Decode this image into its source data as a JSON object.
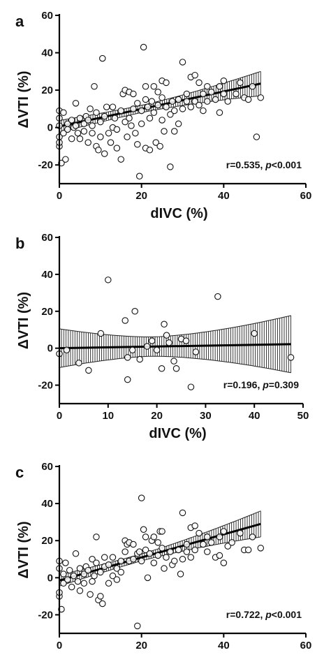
{
  "figure": {
    "panels": [
      {
        "letter": "a",
        "annotation_prefix": "r=0.535, ",
        "annotation_p": "p",
        "annotation_suffix": "<0.001"
      },
      {
        "letter": "b",
        "annotation_prefix": "r=0.196, ",
        "annotation_p": "p",
        "annotation_suffix": "=0.309"
      },
      {
        "letter": "c",
        "annotation_prefix": "r=0.722, ",
        "annotation_p": "p",
        "annotation_suffix": "<0.001"
      }
    ]
  },
  "chart_data": [
    {
      "type": "scatter",
      "panel": "a",
      "title": "",
      "xlabel": "dIVC (%)",
      "ylabel": "ΔVTI (%)",
      "xlim": [
        0,
        60
      ],
      "ylim": [
        -30,
        60
      ],
      "xticks": [
        0,
        20,
        40,
        60
      ],
      "yticks": [
        -20,
        0,
        20,
        40,
        60
      ],
      "annotation": "r=0.535, p<0.001",
      "regression": {
        "x": [
          0,
          49
        ],
        "y": [
          0.6,
          23.5
        ],
        "band_halfwidth": [
          3.2,
          6.5
        ]
      },
      "points": [
        [
          0,
          -10
        ],
        [
          0,
          -8
        ],
        [
          0,
          5
        ],
        [
          0,
          9
        ],
        [
          0,
          1
        ],
        [
          0,
          -5
        ],
        [
          0.5,
          -19
        ],
        [
          1,
          8
        ],
        [
          1,
          -3
        ],
        [
          1.5,
          -17
        ],
        [
          2,
          2
        ],
        [
          2,
          -1
        ],
        [
          3,
          4
        ],
        [
          3,
          -6
        ],
        [
          3.5,
          0
        ],
        [
          4,
          13
        ],
        [
          4,
          1
        ],
        [
          4.5,
          -3
        ],
        [
          5,
          5
        ],
        [
          5,
          -6
        ],
        [
          6,
          2
        ],
        [
          6,
          -2
        ],
        [
          6.5,
          6
        ],
        [
          7,
          4
        ],
        [
          7,
          -8
        ],
        [
          7.5,
          10
        ],
        [
          8,
          -3
        ],
        [
          8,
          1
        ],
        [
          8.5,
          22
        ],
        [
          9,
          8
        ],
        [
          9,
          -10
        ],
        [
          9.5,
          -12
        ],
        [
          10,
          3
        ],
        [
          10,
          -5
        ],
        [
          10.5,
          37
        ],
        [
          11,
          6
        ],
        [
          11,
          -14
        ],
        [
          11.5,
          11
        ],
        [
          12,
          -3
        ],
        [
          12.5,
          -8
        ],
        [
          13,
          11
        ],
        [
          13,
          0
        ],
        [
          13.5,
          5
        ],
        [
          14,
          -1
        ],
        [
          14,
          -11
        ],
        [
          15,
          9
        ],
        [
          15,
          -17
        ],
        [
          15.5,
          18
        ],
        [
          16,
          20
        ],
        [
          16,
          3
        ],
        [
          16.5,
          -5
        ],
        [
          17,
          19
        ],
        [
          17,
          5
        ],
        [
          17.5,
          1
        ],
        [
          18,
          18
        ],
        [
          18,
          10
        ],
        [
          18.5,
          -3
        ],
        [
          19,
          13
        ],
        [
          19,
          -9
        ],
        [
          19.5,
          -26
        ],
        [
          20,
          9
        ],
        [
          20,
          2
        ],
        [
          20.5,
          43
        ],
        [
          21,
          22
        ],
        [
          21,
          15
        ],
        [
          21,
          -11
        ],
        [
          21.5,
          11
        ],
        [
          22,
          5
        ],
        [
          22,
          -12
        ],
        [
          22.5,
          14
        ],
        [
          23,
          22
        ],
        [
          23,
          8
        ],
        [
          23.5,
          -8
        ],
        [
          24,
          19
        ],
        [
          24,
          12
        ],
        [
          24.5,
          -10
        ],
        [
          25,
          25
        ],
        [
          25,
          16
        ],
        [
          25,
          4
        ],
        [
          25.5,
          -2
        ],
        [
          26,
          24
        ],
        [
          26,
          11
        ],
        [
          27,
          7
        ],
        [
          27,
          -21
        ],
        [
          27.5,
          14
        ],
        [
          28,
          9
        ],
        [
          28,
          -2
        ],
        [
          29,
          15
        ],
        [
          29,
          2
        ],
        [
          30,
          35
        ],
        [
          30,
          10
        ],
        [
          31,
          18
        ],
        [
          31,
          14
        ],
        [
          32,
          27
        ],
        [
          32,
          11
        ],
        [
          33,
          28
        ],
        [
          33,
          14
        ],
        [
          34,
          24
        ],
        [
          34,
          12
        ],
        [
          35,
          18
        ],
        [
          35,
          9
        ],
        [
          36,
          22
        ],
        [
          36,
          14
        ],
        [
          37,
          19
        ],
        [
          38,
          15
        ],
        [
          39,
          22
        ],
        [
          39,
          8
        ],
        [
          40,
          25
        ],
        [
          40,
          18
        ],
        [
          41,
          14
        ],
        [
          43,
          18
        ],
        [
          44,
          24
        ],
        [
          45,
          16
        ],
        [
          46,
          15
        ],
        [
          47,
          22
        ],
        [
          48,
          -5
        ],
        [
          49,
          16
        ]
      ]
    },
    {
      "type": "scatter",
      "panel": "b",
      "title": "",
      "xlabel": "dIVC (%)",
      "ylabel": "ΔVTI (%)",
      "xlim": [
        0,
        50
      ],
      "ylim": [
        -30,
        60
      ],
      "xticks": [
        0,
        10,
        20,
        30,
        40,
        50
      ],
      "yticks": [
        -20,
        0,
        20,
        40,
        60
      ],
      "annotation": "r=0.196, p=0.309",
      "regression": {
        "x": [
          0,
          47.5
        ],
        "y": [
          0.0,
          2.2
        ],
        "band_halfwidth": [
          10.5,
          15.5
        ]
      },
      "points": [
        [
          0,
          -3
        ],
        [
          1.5,
          -1
        ],
        [
          4,
          -8
        ],
        [
          6,
          -12
        ],
        [
          8.5,
          8
        ],
        [
          10,
          37
        ],
        [
          13.5,
          15
        ],
        [
          14,
          -17
        ],
        [
          14,
          -5
        ],
        [
          15,
          -1
        ],
        [
          15.5,
          20
        ],
        [
          16.5,
          -6
        ],
        [
          18,
          1
        ],
        [
          19,
          4
        ],
        [
          20,
          -1
        ],
        [
          21,
          -11
        ],
        [
          21.5,
          13
        ],
        [
          22,
          7
        ],
        [
          22.5,
          3
        ],
        [
          23.5,
          -7
        ],
        [
          24,
          -11
        ],
        [
          25,
          5
        ],
        [
          26,
          4
        ],
        [
          27,
          -21
        ],
        [
          28,
          -2
        ],
        [
          32.5,
          28
        ],
        [
          40,
          8
        ],
        [
          47.5,
          -5
        ]
      ]
    },
    {
      "type": "scatter",
      "panel": "c",
      "title": "",
      "xlabel": "",
      "ylabel": "ΔVTI (%)",
      "xlim": [
        0,
        60
      ],
      "ylim": [
        -30,
        60
      ],
      "xticks": [
        0,
        20,
        40,
        60
      ],
      "yticks": [
        -20,
        0,
        20,
        40,
        60
      ],
      "annotation": "r=0.722, p<0.001",
      "regression": {
        "x": [
          0,
          49
        ],
        "y": [
          -1.5,
          29
        ],
        "band_halfwidth": [
          3.0,
          7.0
        ]
      },
      "points": [
        [
          0,
          -10
        ],
        [
          0,
          -8
        ],
        [
          0,
          5
        ],
        [
          0,
          9
        ],
        [
          0.5,
          -17
        ],
        [
          1,
          2
        ],
        [
          1,
          -3
        ],
        [
          1.5,
          8
        ],
        [
          2,
          -1
        ],
        [
          2.5,
          4
        ],
        [
          3,
          -5
        ],
        [
          3.5,
          1
        ],
        [
          4,
          13
        ],
        [
          4.5,
          -2
        ],
        [
          5,
          5
        ],
        [
          5,
          -7
        ],
        [
          6,
          2
        ],
        [
          6,
          -3
        ],
        [
          6.5,
          6
        ],
        [
          7,
          4
        ],
        [
          7.5,
          -9
        ],
        [
          8,
          10
        ],
        [
          8,
          -2
        ],
        [
          8.5,
          1
        ],
        [
          9,
          22
        ],
        [
          9,
          8
        ],
        [
          9.5,
          -12
        ],
        [
          10,
          -10
        ],
        [
          10,
          3
        ],
        [
          10.5,
          -14
        ],
        [
          11,
          6
        ],
        [
          11,
          11
        ],
        [
          12,
          -3
        ],
        [
          12,
          7
        ],
        [
          13,
          11
        ],
        [
          13,
          1
        ],
        [
          14,
          5
        ],
        [
          14,
          -1
        ],
        [
          15,
          9
        ],
        [
          15,
          3
        ],
        [
          16,
          20
        ],
        [
          16,
          14
        ],
        [
          16.5,
          18
        ],
        [
          17,
          19
        ],
        [
          17,
          9
        ],
        [
          18,
          18
        ],
        [
          18,
          10
        ],
        [
          19,
          13
        ],
        [
          19,
          -26
        ],
        [
          19.5,
          14
        ],
        [
          20,
          9
        ],
        [
          20,
          43
        ],
        [
          20.5,
          26
        ],
        [
          21,
          22
        ],
        [
          21,
          15
        ],
        [
          21.5,
          0
        ],
        [
          22,
          13
        ],
        [
          22.5,
          20
        ],
        [
          23,
          22
        ],
        [
          23,
          8
        ],
        [
          24,
          19
        ],
        [
          24,
          12
        ],
        [
          24.5,
          25
        ],
        [
          25,
          25
        ],
        [
          25,
          16
        ],
        [
          25.5,
          5
        ],
        [
          26,
          11
        ],
        [
          27,
          14
        ],
        [
          27.5,
          7
        ],
        [
          28,
          9
        ],
        [
          29,
          15
        ],
        [
          29.5,
          2
        ],
        [
          30,
          35
        ],
        [
          30,
          10
        ],
        [
          31,
          18
        ],
        [
          31,
          14
        ],
        [
          32,
          27
        ],
        [
          32,
          11
        ],
        [
          33,
          28
        ],
        [
          33,
          15
        ],
        [
          34,
          24
        ],
        [
          35,
          18
        ],
        [
          36,
          22
        ],
        [
          36,
          14
        ],
        [
          37,
          19
        ],
        [
          38,
          11
        ],
        [
          39,
          22
        ],
        [
          39,
          12
        ],
        [
          40,
          25
        ],
        [
          40,
          8
        ],
        [
          41,
          17
        ],
        [
          42,
          19
        ],
        [
          44,
          24
        ],
        [
          45,
          15
        ],
        [
          46,
          15
        ],
        [
          47,
          22
        ],
        [
          49,
          16
        ]
      ]
    }
  ]
}
